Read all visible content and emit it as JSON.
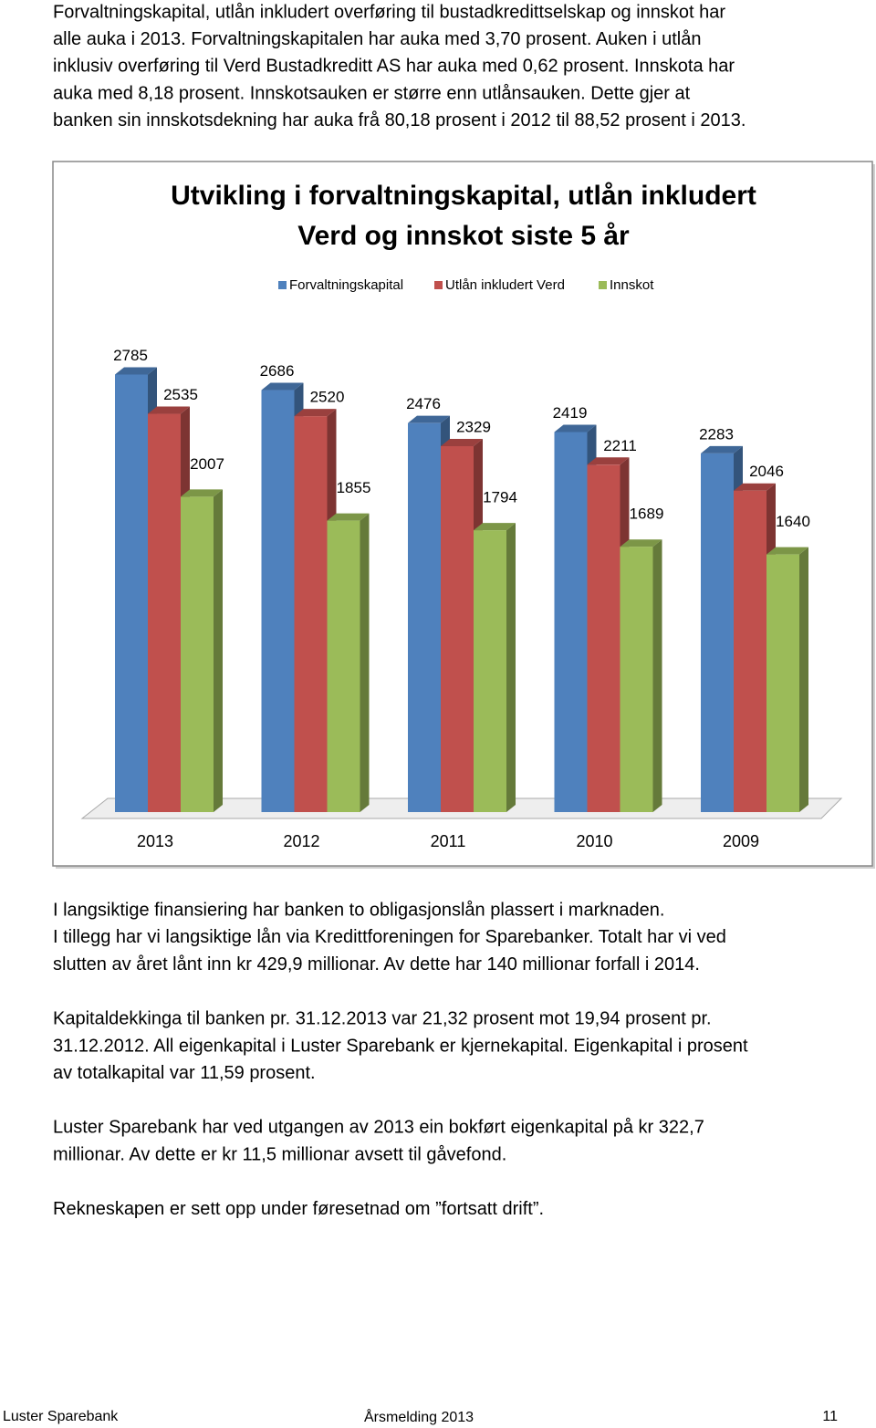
{
  "intro": {
    "lines": [
      "Forvaltningskapital, utlån inkludert overføring til bustadkredittselskap og innskot har",
      "alle auka i 2013. Forvaltningskapitalen har auka med 3,70 prosent. Auken i utlån",
      "inklusiv overføring til Verd  Bustadkreditt AS har auka med  0,62 prosent. Innskota har",
      "auka med 8,18 prosent. Innskotsauken er større enn utlånsauken.  Dette gjer at",
      "banken sin innskotsdekning har auka frå 80,18 prosent i 2012 til 88,52 prosent i 2013."
    ]
  },
  "chart_data": {
    "type": "bar",
    "title": [
      "Utvikling i forvaltningskapital, utlån inkludert",
      "Verd og innskot siste 5 år"
    ],
    "categories": [
      "2013",
      "2012",
      "2011",
      "2010",
      "2009"
    ],
    "series": [
      {
        "name": "Forvaltningskapital",
        "color": "#4f81bd",
        "values": [
          2785,
          2686,
          2476,
          2419,
          2283
        ]
      },
      {
        "name": "Utlån inkludert Verd",
        "color": "#c0504d",
        "values": [
          2535,
          2520,
          2329,
          2211,
          2046
        ]
      },
      {
        "name": "Innskot",
        "color": "#9bbb59",
        "values": [
          2007,
          1855,
          1794,
          1689,
          1640
        ]
      }
    ]
  },
  "body": {
    "paragraphs": [
      [
        "I langsiktige finansiering har banken  to obligasjonslån plassert i marknaden.",
        "I tillegg har vi  langsiktige lån via Kredittforeningen for Sparebanker. Totalt har vi ved",
        "slutten av året lånt inn kr 429,9 millionar. Av dette har 140 millionar forfall i 2014."
      ],
      [
        "Kapitaldekkinga til banken pr. 31.12.2013 var 21,32 prosent mot 19,94 prosent pr.",
        "31.12.2012. All eigenkapital i Luster Sparebank er kjernekapital. Eigenkapital i prosent",
        "av totalkapital var 11,59 prosent."
      ],
      [
        "Luster Sparebank har ved utgangen av 2013 ein bokført eigenkapital på kr 322,7",
        "millionar. Av dette er kr 11,5 millionar avsett til gåvefond."
      ],
      [
        "Rekneskapen er sett opp under føresetnad om ”fortsatt drift”."
      ]
    ]
  },
  "footer": {
    "left": "Luster Sparebank",
    "center": "Årsmelding 2013",
    "page": "11"
  }
}
